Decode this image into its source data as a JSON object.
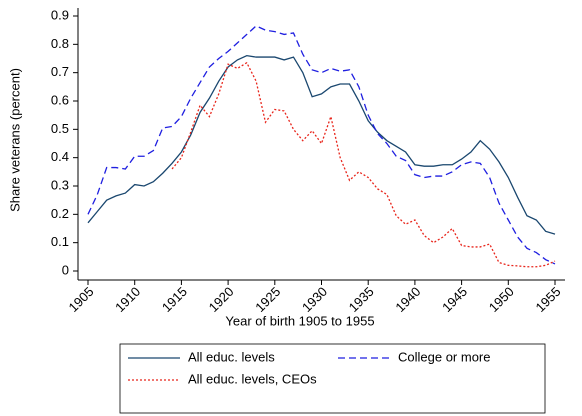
{
  "chart_data": {
    "type": "line",
    "xlabel": "Year of birth 1905 to 1955",
    "ylabel": "Share veterans (percent)",
    "x": [
      1905,
      1906,
      1907,
      1908,
      1909,
      1910,
      1911,
      1912,
      1913,
      1914,
      1915,
      1916,
      1917,
      1918,
      1919,
      1920,
      1921,
      1922,
      1923,
      1924,
      1925,
      1926,
      1927,
      1928,
      1929,
      1930,
      1931,
      1932,
      1933,
      1934,
      1935,
      1936,
      1937,
      1938,
      1939,
      1940,
      1941,
      1942,
      1943,
      1944,
      1945,
      1946,
      1947,
      1948,
      1949,
      1950,
      1951,
      1952,
      1953,
      1954,
      1955
    ],
    "series": [
      {
        "name": "All educ. levels",
        "color": "#1a476f",
        "dash": "solid",
        "values": [
          0.17,
          0.21,
          0.25,
          0.265,
          0.275,
          0.305,
          0.3,
          0.315,
          0.345,
          0.38,
          0.42,
          0.48,
          0.56,
          0.61,
          0.67,
          0.72,
          0.745,
          0.76,
          0.755,
          0.755,
          0.755,
          0.745,
          0.755,
          0.7,
          0.615,
          0.625,
          0.65,
          0.66,
          0.66,
          0.6,
          0.53,
          0.49,
          0.46,
          0.44,
          0.42,
          0.375,
          0.37,
          0.37,
          0.375,
          0.375,
          0.395,
          0.42,
          0.46,
          0.43,
          0.385,
          0.33,
          0.26,
          0.195,
          0.18,
          0.14,
          0.13
        ]
      },
      {
        "name": "College or more",
        "color": "#1f1fe0",
        "dash": "dashed",
        "values": [
          0.2,
          0.27,
          0.365,
          0.365,
          0.36,
          0.405,
          0.405,
          0.425,
          0.505,
          0.51,
          0.545,
          0.61,
          0.665,
          0.72,
          0.75,
          0.775,
          0.805,
          0.835,
          0.865,
          0.85,
          0.845,
          0.835,
          0.84,
          0.765,
          0.71,
          0.7,
          0.715,
          0.705,
          0.71,
          0.65,
          0.55,
          0.485,
          0.45,
          0.405,
          0.39,
          0.34,
          0.33,
          0.335,
          0.335,
          0.35,
          0.375,
          0.385,
          0.38,
          0.33,
          0.24,
          0.18,
          0.12,
          0.08,
          0.065,
          0.04,
          0.025
        ]
      },
      {
        "name": "All educ. levels, CEOs",
        "color": "#e8251b",
        "dash": "dotted",
        "values": [
          null,
          null,
          null,
          null,
          null,
          null,
          null,
          null,
          null,
          0.36,
          0.4,
          0.49,
          0.585,
          0.545,
          0.625,
          0.73,
          0.715,
          0.735,
          0.67,
          0.525,
          0.57,
          0.565,
          0.5,
          0.46,
          0.495,
          0.45,
          0.545,
          0.4,
          0.32,
          0.35,
          0.33,
          0.29,
          0.27,
          0.195,
          0.165,
          0.18,
          0.125,
          0.1,
          0.12,
          0.15,
          0.09,
          0.085,
          0.085,
          0.095,
          0.03,
          0.02,
          0.018,
          0.015,
          0.015,
          0.02,
          0.035
        ]
      }
    ],
    "xlim": [
      1905,
      1955
    ],
    "xticks": [
      1905,
      1910,
      1915,
      1920,
      1925,
      1930,
      1935,
      1940,
      1945,
      1950,
      1955
    ],
    "ylim": [
      0,
      0.9
    ],
    "yticks": [
      0,
      0.1,
      0.2,
      0.3,
      0.4,
      0.5,
      0.6,
      0.7,
      0.8,
      0.9
    ],
    "legend": "bottom",
    "grid": false
  }
}
